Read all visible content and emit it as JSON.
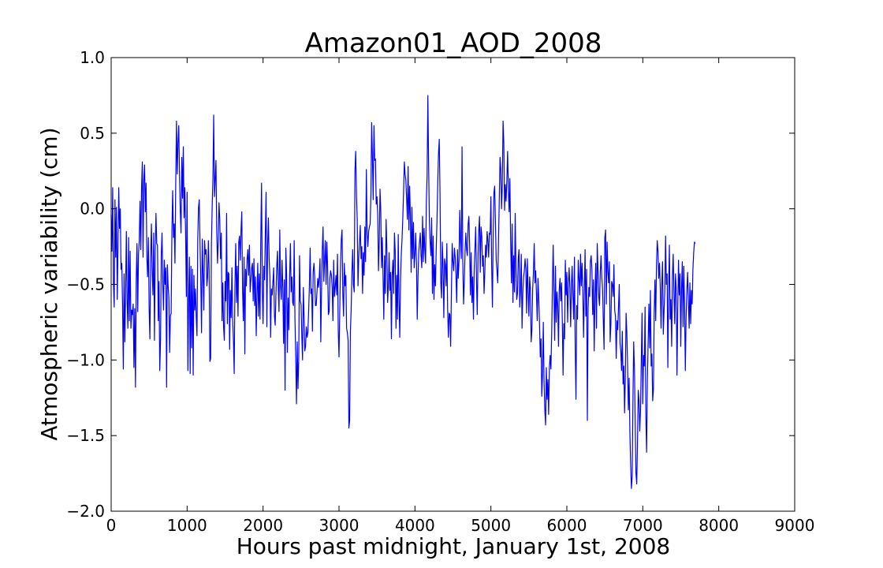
{
  "chart_data": {
    "type": "line",
    "title": "Amazon01_AOD_2008",
    "xlabel": "Hours past midnight, January 1st, 2008",
    "ylabel": "Atmospheric variability (cm)",
    "xlim": [
      0,
      9000
    ],
    "ylim": [
      -2.0,
      1.0
    ],
    "x_ticks": [
      0,
      1000,
      2000,
      3000,
      4000,
      5000,
      6000,
      7000,
      8000,
      9000
    ],
    "x_tick_labels": [
      "0",
      "1000",
      "2000",
      "3000",
      "4000",
      "5000",
      "6000",
      "7000",
      "8000",
      "9000"
    ],
    "y_ticks": [
      1.0,
      0.5,
      0.0,
      -0.5,
      -1.0,
      -1.5,
      -2.0
    ],
    "y_tick_labels": [
      "1.0",
      "0.5",
      "0.0",
      "−0.5",
      "−1.0",
      "−1.5",
      "−2.0"
    ],
    "grid": false,
    "line_color": "#0000ff",
    "series": [
      {
        "x_start": 0,
        "x_step": 10,
        "values": [
          -0.04,
          -0.28,
          0.14,
          -0.49,
          -0.65,
          0.06,
          -0.32,
          0.01,
          -0.6,
          -0.25,
          0.14,
          -0.13,
          0.0,
          -0.4,
          -0.36,
          -0.63,
          -1.06,
          -0.43,
          -0.88,
          -0.54,
          -0.15,
          -0.61,
          -0.79,
          -0.19,
          -0.74,
          -0.28,
          -0.79,
          -0.67,
          -0.7,
          -0.63,
          -1.05,
          -0.66,
          -1.18,
          -0.47,
          -0.23,
          -0.68,
          -0.3,
          -0.21,
          0.05,
          -0.27,
          0.13,
          0.31,
          -0.32,
          0.19,
          0.29,
          -0.02,
          0.17,
          -0.32,
          -0.45,
          -0.19,
          -0.66,
          -0.86,
          -0.33,
          -0.1,
          -0.41,
          -0.57,
          -0.16,
          -0.87,
          -0.28,
          -0.03,
          -0.23,
          -0.24,
          -0.74,
          -0.48,
          -1.07,
          -0.87,
          -0.3,
          -0.16,
          -0.5,
          -0.67,
          -0.34,
          -0.5,
          -0.39,
          -1.18,
          -0.37,
          -0.51,
          -0.59,
          -0.95,
          -0.71,
          -0.69,
          -0.14,
          0.12,
          -0.19,
          -0.1,
          -0.36,
          0.16,
          0.58,
          0.23,
          0.44,
          0.55,
          0.22,
          -0.01,
          -0.16,
          0.34,
          0.07,
          0.41,
          -0.06,
          0.14,
          -0.16,
          -0.58,
          0.11,
          -1.07,
          -0.62,
          -0.32,
          -1.09,
          -0.38,
          -0.92,
          -0.4,
          -1.1,
          -0.44,
          -0.67,
          -0.53,
          -0.71,
          -0.84,
          -0.21,
          0.01,
          0.06,
          -0.23,
          -0.47,
          -0.82,
          -0.2,
          -0.43,
          -0.67,
          -0.21,
          -0.3,
          -0.27,
          -0.51,
          -0.45,
          -0.21,
          -0.41,
          -1.01,
          -0.99,
          -0.24,
          0.01,
          0.21,
          0.62,
          0.08,
          0.2,
          0.32,
          -0.15,
          -0.36,
          -0.21,
          0.04,
          -0.07,
          -0.33,
          -0.16,
          -0.74,
          -0.49,
          -0.78,
          -0.87,
          -0.48,
          -0.61,
          -0.03,
          -0.76,
          -0.42,
          -0.43,
          -0.93,
          -0.54,
          -0.72,
          -0.39,
          -0.73,
          -0.87,
          -1.09,
          -0.5,
          -0.23,
          -0.62,
          -0.38,
          -0.71,
          -0.22,
          -0.18,
          -0.34,
          -0.14,
          -0.02,
          -0.53,
          -0.74,
          -0.32,
          -0.96,
          -0.4,
          -0.51,
          -0.33,
          -0.27,
          -0.44,
          -0.24,
          -0.55,
          -0.47,
          -0.39,
          -0.36,
          -0.61,
          -0.33,
          -0.64,
          -0.45,
          -0.84,
          -0.57,
          -0.36,
          -0.71,
          -0.43,
          -0.73,
          -0.2,
          0.17,
          -0.52,
          -0.76,
          -0.38,
          -0.47,
          -0.16,
          0.11,
          -0.78,
          -0.25,
          -0.06,
          -0.33,
          -0.45,
          -0.85,
          -0.53,
          -0.57,
          -0.48,
          -0.39,
          -0.71,
          -0.77,
          -0.56,
          -0.38,
          -0.28,
          -0.51,
          -0.68,
          -0.14,
          -0.51,
          -0.6,
          -0.34,
          -0.52,
          -0.89,
          -0.47,
          -1.2,
          -0.26,
          -0.43,
          -0.95,
          -0.59,
          -0.8,
          -0.45,
          -0.23,
          -0.55,
          -0.45,
          -0.62,
          -0.64,
          -0.21,
          -0.73,
          -0.98,
          -1.29,
          -0.88,
          -1.19,
          -0.99,
          -0.31,
          -0.61,
          -0.63,
          -0.84,
          -1.0,
          -0.52,
          -0.71,
          -0.94,
          -0.91,
          -0.78,
          -0.85,
          -0.82,
          -0.68,
          -0.51,
          -0.26,
          -0.56,
          -0.53,
          -0.81,
          -0.42,
          -0.36,
          -0.45,
          -0.64,
          -0.64,
          -0.55,
          -0.46,
          -0.52,
          -0.45,
          -0.33,
          -0.88,
          -0.53,
          -0.27,
          -0.12,
          -0.48,
          -0.34,
          -0.21,
          -0.5,
          -0.22,
          -0.38,
          -0.7,
          -0.68,
          -0.46,
          -0.41,
          -0.44,
          -0.52,
          -0.74,
          -0.34,
          -0.58,
          -0.52,
          -0.44,
          -0.57,
          -0.3,
          -0.81,
          -0.98,
          -0.67,
          -0.38,
          -0.2,
          -0.14,
          -0.56,
          -0.71,
          -0.36,
          -0.51,
          -0.44,
          -0.79,
          -0.82,
          -0.87,
          -1.45,
          -1.4,
          -0.81,
          -0.67,
          -0.42,
          -0.27,
          -0.5,
          -0.55,
          0.25,
          0.38,
          0.09,
          -0.07,
          -0.51,
          -0.32,
          -0.22,
          -0.11,
          -0.33,
          -0.25,
          -0.56,
          -0.29,
          -0.44,
          -0.12,
          -0.35,
          0.26,
          -0.15,
          -0.25,
          -0.15,
          -0.12,
          -0.1,
          0.09,
          0.57,
          0.34,
          0.06,
          0.55,
          0.32,
          0.33,
          0.03,
          0.08,
          -0.04,
          -0.41,
          -0.22,
          0.13,
          -0.01,
          -0.39,
          -0.19,
          -0.45,
          -0.73,
          -0.31,
          -0.56,
          -0.07,
          -0.27,
          -0.62,
          -0.51,
          -0.29,
          -0.54,
          -0.42,
          -0.86,
          -0.44,
          -0.34,
          -0.56,
          -0.16,
          -0.28,
          -0.79,
          -0.44,
          -0.73,
          -0.17,
          -0.6,
          -0.85,
          -0.47,
          -0.3,
          -0.2,
          -0.06,
          0.11,
          0.31,
          0.23,
          0.19,
          0.07,
          -0.07,
          0.28,
          -0.14,
          0.15,
          -0.05,
          -0.42,
          0.01,
          -0.33,
          -0.09,
          -0.39,
          -0.3,
          -0.16,
          -0.35,
          -0.73,
          -0.45,
          -0.29,
          -0.22,
          -0.16,
          -0.31,
          -0.39,
          -0.05,
          -0.35,
          -0.13,
          -0.27,
          -0.36,
          0.05,
          0.22,
          0.75,
          0.29,
          -0.09,
          -0.22,
          -0.31,
          -0.06,
          -0.56,
          -0.18,
          -0.6,
          -0.37,
          -0.51,
          -0.27,
          -0.08,
          0.17,
          0.37,
          0.46,
          0.1,
          -0.49,
          -0.59,
          -0.22,
          -0.38,
          -0.72,
          -0.33,
          -0.37,
          -0.51,
          -0.23,
          -0.66,
          -0.85,
          -0.69,
          -0.7,
          -0.91,
          -0.55,
          -0.23,
          -0.35,
          -0.41,
          -0.26,
          -0.32,
          -0.44,
          -0.62,
          -0.27,
          -0.46,
          -0.34,
          -0.01,
          -0.22,
          -0.33,
          0.41,
          -0.35,
          -0.63,
          -0.48,
          -0.28,
          -0.16,
          -0.27,
          -0.31,
          -0.1,
          -0.05,
          -0.24,
          -0.57,
          -0.29,
          -0.62,
          -0.45,
          -0.73,
          -0.41,
          -0.26,
          -0.12,
          -0.46,
          -0.7,
          -0.32,
          -0.14,
          -0.05,
          -0.42,
          -0.12,
          -0.18,
          -0.38,
          -0.31,
          -0.56,
          -0.42,
          -0.24,
          -0.32,
          -0.15,
          -0.21,
          -0.32,
          -0.16,
          -0.17,
          0.08,
          -0.37,
          -0.65,
          -0.18,
          0.11,
          0.15,
          -0.1,
          -0.34,
          -0.41,
          -0.49,
          -0.21,
          0.05,
          0.34,
          0.26,
          0.0,
          0.15,
          0.58,
          0.44,
          -0.01,
          0.16,
          0.05,
          0.19,
          0.38,
          0.14,
          -0.02,
          0.2,
          -0.21,
          -0.49,
          -0.1,
          -0.62,
          -0.31,
          -0.55,
          -0.03,
          -0.41,
          -0.6,
          -0.56,
          -0.33,
          -0.27,
          -0.65,
          -0.54,
          -0.3,
          -0.79,
          -0.56,
          -0.45,
          -0.41,
          -0.33,
          -0.4,
          -0.69,
          -0.33,
          -0.54,
          -0.71,
          -0.45,
          -0.53,
          -0.88,
          -0.8,
          -0.53,
          -0.42,
          -0.23,
          -0.49,
          -0.41,
          -0.57,
          -0.74,
          -0.46,
          -0.59,
          -0.76,
          -0.98,
          -0.86,
          -1.24,
          -1.09,
          -0.75,
          -1.15,
          -1.33,
          -1.43,
          -1.05,
          -1.26,
          -1.13,
          -1.36,
          -1.05,
          -0.97,
          -1.06,
          -0.83,
          -0.5,
          -0.24,
          -0.55,
          -0.87,
          -0.38,
          -0.75,
          -0.55,
          -0.64,
          -0.91,
          -0.53,
          -0.46,
          -0.61,
          -0.49,
          -0.73,
          -1.1,
          -0.76,
          -0.86,
          -0.34,
          -0.57,
          -0.42,
          -0.75,
          -0.5,
          -0.39,
          -0.53,
          -0.78,
          -0.5,
          -0.38,
          -0.58,
          -0.73,
          -0.32,
          -0.91,
          -1.26,
          -0.64,
          -0.73,
          -0.34,
          -0.46,
          -0.57,
          -0.3,
          -0.51,
          -0.36,
          -0.53,
          -0.85,
          -0.55,
          -0.27,
          -0.71,
          -0.4,
          -1.4,
          -0.66,
          -0.52,
          -0.58,
          -0.35,
          -0.31,
          -0.4,
          -0.7,
          -0.47,
          -0.94,
          -0.58,
          -0.36,
          -0.79,
          -0.23,
          -0.41,
          -0.58,
          -0.64,
          -0.42,
          -0.31,
          -0.45,
          -0.53,
          -0.74,
          -0.93,
          -0.19,
          -0.14,
          -0.63,
          -0.22,
          -0.41,
          -0.49,
          -0.35,
          -0.88,
          -0.76,
          -0.48,
          -0.5,
          -0.58,
          -0.37,
          -0.67,
          -0.71,
          -0.99,
          -0.74,
          -0.8,
          -0.65,
          -0.5,
          -0.89,
          -0.94,
          -1.07,
          -0.81,
          -1.16,
          -1.04,
          -1.35,
          -1.12,
          -0.69,
          -0.82,
          -1.05,
          -1.33,
          -1.12,
          -1.48,
          -1.69,
          -1.85,
          -1.77,
          -1.27,
          -0.88,
          -1.06,
          -1.41,
          -1.75,
          -1.82,
          -1.55,
          -1.2,
          -1.27,
          -1.47,
          -1.33,
          -1.01,
          -0.69,
          -1.29,
          -0.97,
          -1.04,
          -0.65,
          -1.36,
          -1.61,
          -1.14,
          -0.89,
          -0.63,
          -0.92,
          -0.54,
          -1.04,
          -0.96,
          -1.27,
          -1.19,
          -0.69,
          -0.47,
          -0.74,
          -0.38,
          -0.21,
          -0.28,
          -0.46,
          -0.36,
          -0.52,
          -0.79,
          -0.5,
          -0.35,
          -0.83,
          -0.67,
          -0.54,
          -0.18,
          -0.5,
          -0.43,
          -1.05,
          -0.55,
          -0.24,
          -0.73,
          -0.6,
          -0.91,
          -0.45,
          -0.3,
          -0.55,
          -0.76,
          -0.43,
          -0.53,
          -1.1,
          -0.67,
          -0.34,
          -0.57,
          -0.43,
          -0.91,
          -0.53,
          -0.35,
          -0.78,
          -0.38,
          -0.65,
          -1.07,
          -0.72,
          -0.54,
          -0.42,
          -0.6,
          -0.79,
          -0.49,
          -0.76,
          -0.54,
          -0.63,
          -0.4,
          -0.29,
          -0.22,
          -0.23
        ]
      }
    ]
  }
}
